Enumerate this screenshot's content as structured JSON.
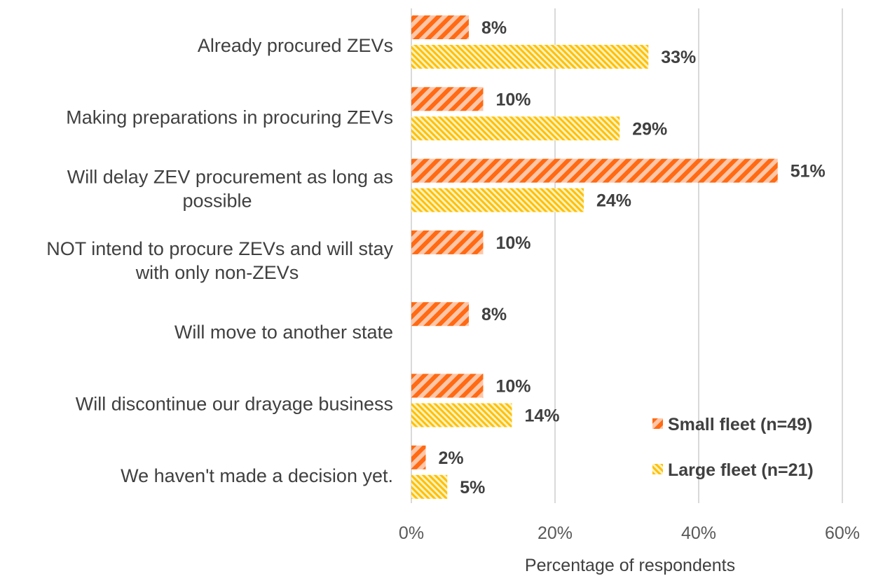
{
  "chart_data": {
    "type": "bar",
    "orientation": "horizontal",
    "categories": [
      [
        "Already procured ZEVs"
      ],
      [
        "Making preparations in procuring ZEVs"
      ],
      [
        "Will delay ZEV procurement as long as",
        "possible"
      ],
      [
        "NOT intend to procure ZEVs and will stay",
        "with only non-ZEVs"
      ],
      [
        "Will move to another state"
      ],
      [
        "Will discontinue our drayage business"
      ],
      [
        "We haven't made a decision yet."
      ]
    ],
    "series": [
      {
        "name": "Small fleet (n=49)",
        "values": [
          8,
          10,
          51,
          10,
          8,
          10,
          2
        ],
        "labels": [
          "8%",
          "10%",
          "51%",
          "10%",
          "8%",
          "10%",
          "2%"
        ],
        "color": "#ff6a13",
        "stripe_bg": "#ffc6a8",
        "pattern": "wide-downward-diagonal"
      },
      {
        "name": "Large fleet (n=21)",
        "values": [
          33,
          29,
          24,
          null,
          null,
          14,
          5
        ],
        "labels": [
          "33%",
          "29%",
          "24%",
          null,
          null,
          "14%",
          "5%"
        ],
        "color": "#ffc000",
        "stripe_bg": "#fff2c4",
        "pattern": "narrow-upward-diagonal"
      }
    ],
    "xlim": [
      0,
      60
    ],
    "xticks": [
      0,
      20,
      40,
      60
    ],
    "xtick_labels": [
      "0%",
      "20%",
      "40%",
      "60%"
    ],
    "xlabel": "Percentage of respondents",
    "grid": true,
    "legend_position": "bottom-right"
  }
}
